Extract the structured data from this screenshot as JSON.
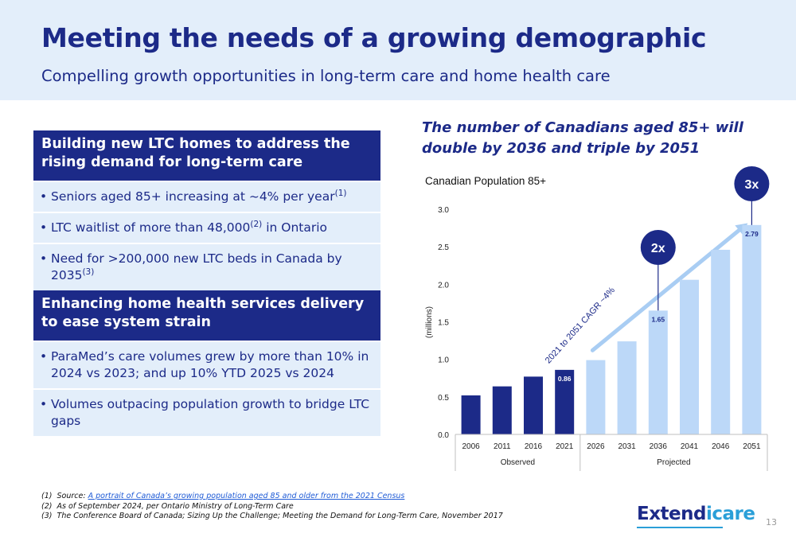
{
  "header": {
    "title": "Meeting the needs of a growing demographic",
    "subtitle": "Compelling growth opportunities in long-term care and home health care"
  },
  "sections": [
    {
      "heading": "Building new LTC homes to address the rising demand for long-term care",
      "bullets": [
        {
          "pre": "Seniors aged 85+ increasing at ~4% per year",
          "sup": "(1)",
          "post": ""
        },
        {
          "pre": "LTC waitlist of more than 48,000",
          "sup": "(2)",
          "post": " in Ontario"
        },
        {
          "pre": "Need for >200,000 new LTC beds in Canada by 2035",
          "sup": "(3)",
          "post": ""
        }
      ]
    },
    {
      "heading": "Enhancing home health services delivery to ease system strain",
      "bullets": [
        {
          "pre": "ParaMed’s care volumes grew by more than 10% in 2024 vs 2023; and up 10% YTD 2025 vs 2024",
          "sup": "",
          "post": ""
        },
        {
          "pre": "Volumes outpacing population growth to bridge LTC gaps",
          "sup": "",
          "post": ""
        }
      ]
    }
  ],
  "chart_heading": "The number of Canadians aged 85+ will double by 2036 and triple by 2051",
  "chart_data": {
    "type": "bar",
    "title": "Canadian Population 85+",
    "ylabel": "(millions)",
    "xlabel": "",
    "ylim": [
      0,
      3.0
    ],
    "yticks": [
      "0.0",
      "0.5",
      "1.0",
      "1.5",
      "2.0",
      "2.5",
      "3.0"
    ],
    "grid": false,
    "categories": [
      "2006",
      "2011",
      "2016",
      "2021",
      "2026",
      "2031",
      "2036",
      "2041",
      "2046",
      "2051"
    ],
    "values": [
      0.52,
      0.64,
      0.77,
      0.86,
      0.99,
      1.24,
      1.65,
      2.06,
      2.46,
      2.79
    ],
    "groups": [
      {
        "label": "Observed",
        "start": 0,
        "end": 3,
        "color": "#1c2a88"
      },
      {
        "label": "Projected",
        "start": 4,
        "end": 9,
        "color": "#bcd8f8"
      }
    ],
    "data_labels": [
      {
        "index": 3,
        "text": "0.86",
        "color": "#ffffff"
      },
      {
        "index": 6,
        "text": "1.65",
        "color": "#1c2a88"
      },
      {
        "index": 9,
        "text": "2.79",
        "color": "#1c2a88"
      }
    ],
    "callouts": [
      {
        "index": 6,
        "text": "2x"
      },
      {
        "index": 9,
        "text": "3x"
      }
    ],
    "trend_label": "2021 to 2051 CAGR ~4%",
    "trend_color": "#a9cdf3"
  },
  "footnotes": [
    {
      "num": "(1)",
      "text": "Source: ",
      "link": "A portrait of Canada’s growing population aged 85 and older from the 2021 Census"
    },
    {
      "num": "(2)",
      "text": "As of September 2024, per Ontario Ministry of Long-Term Care",
      "link": ""
    },
    {
      "num": "(3)",
      "text": "The Conference Board of Canada; Sizing Up the Challenge; Meeting the Demand for Long-Term Care, November 2017",
      "link": ""
    }
  ],
  "logo": {
    "part1": "Extend",
    "part2": "icare"
  },
  "page_number": "13"
}
